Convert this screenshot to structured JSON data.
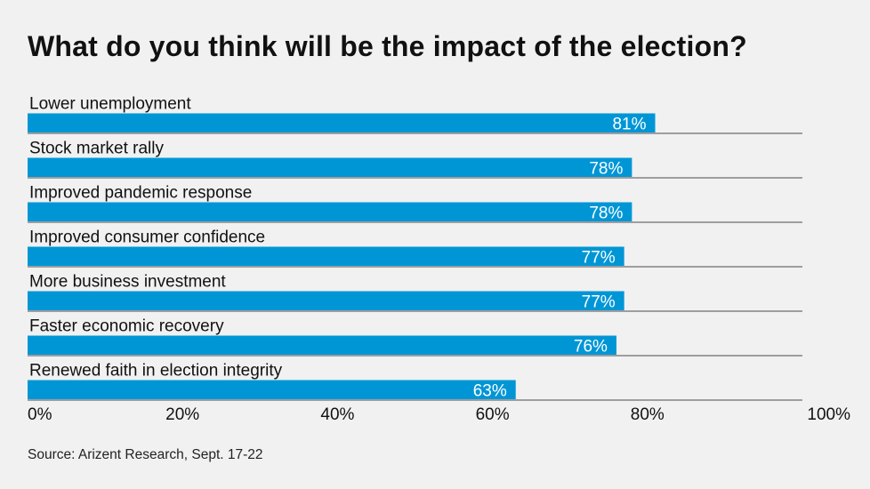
{
  "chart_data": {
    "type": "bar",
    "orientation": "horizontal",
    "title": "What do you think will be the impact of the election?",
    "categories": [
      "Lower unemployment",
      "Stock market rally",
      "Improved pandemic response",
      "Improved consumer confidence",
      "More business investment",
      "Faster economic recovery",
      "Renewed faith in election integrity"
    ],
    "values": [
      81,
      78,
      78,
      77,
      77,
      76,
      63
    ],
    "data_labels": [
      "81%",
      "78%",
      "78%",
      "77%",
      "77%",
      "76%",
      "63%"
    ],
    "xlim": [
      0,
      100
    ],
    "xticks": [
      0,
      20,
      40,
      60,
      80,
      100
    ],
    "xtick_labels": [
      "0%",
      "20%",
      "40%",
      "60%",
      "80%",
      "100%"
    ],
    "xlabel": "",
    "ylabel": "",
    "bar_color": "#0096d6",
    "source": "Source: Arizent Research, Sept. 17-22"
  }
}
